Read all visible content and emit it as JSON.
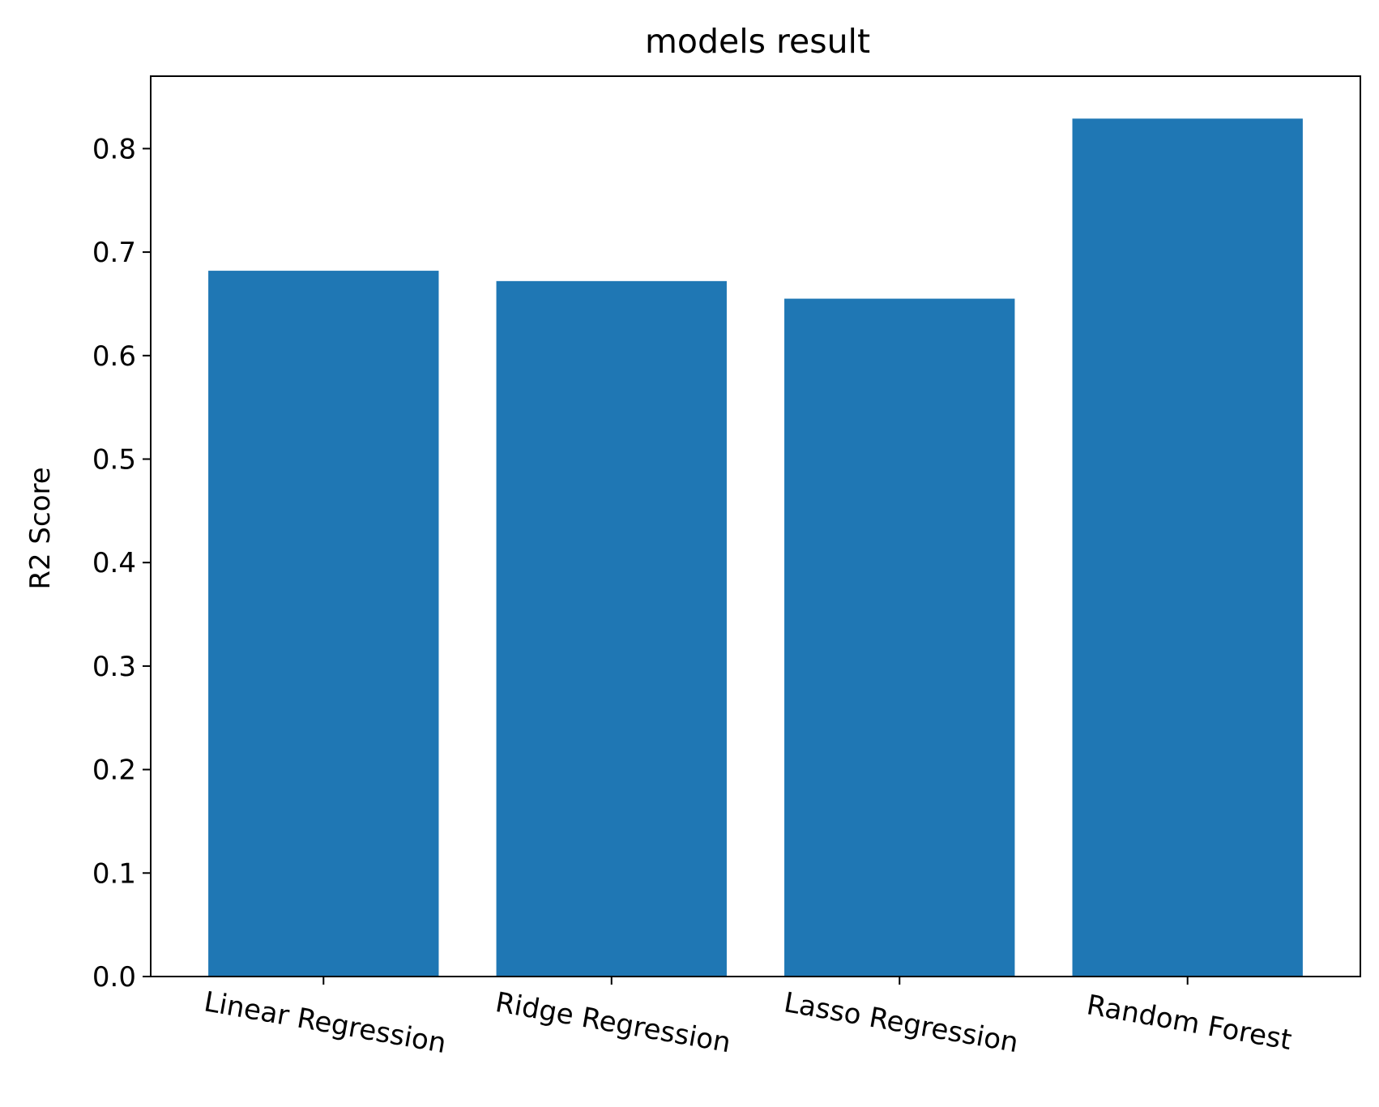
{
  "chart_data": {
    "type": "bar",
    "title": "models result",
    "xlabel": "",
    "ylabel": "R2 Score",
    "categories": [
      "Linear Regression",
      "Ridge Regression",
      "Lasso Regression",
      "Random Forest"
    ],
    "values": [
      0.682,
      0.672,
      0.655,
      0.829
    ],
    "ylim": [
      0,
      0.87
    ],
    "yticks": [
      "0.0",
      "0.1",
      "0.2",
      "0.3",
      "0.4",
      "0.5",
      "0.6",
      "0.7",
      "0.8"
    ],
    "bar_color": "#1f77b4",
    "grid": false,
    "legend": "none"
  }
}
